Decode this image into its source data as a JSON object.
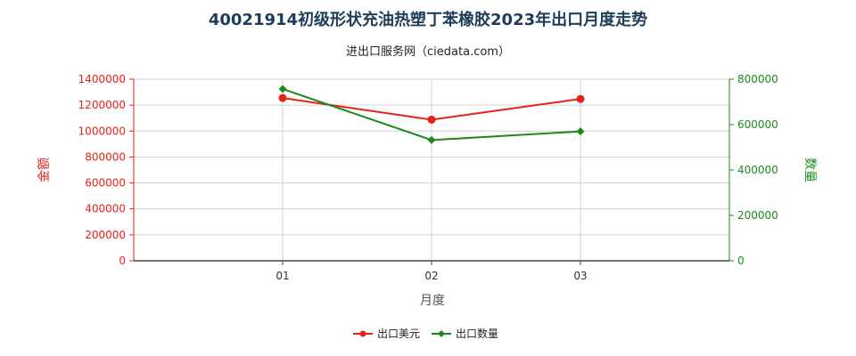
{
  "chart_data": {
    "type": "line",
    "title": "40021914初级形状充油热塑丁苯橡胶2023年出口月度走势",
    "subtitle": "进出口服务网（ciedata.com）",
    "xlabel": "月度",
    "ylabel_left": "金额",
    "ylabel_right": "数量",
    "categories": [
      "01",
      "02",
      "03"
    ],
    "y_left": {
      "min": 0,
      "max": 1400000,
      "ticks": [
        "0",
        "200000",
        "400000",
        "600000",
        "800000",
        "1000000",
        "1200000",
        "1400000"
      ]
    },
    "y_right": {
      "min": 0,
      "max": 800000,
      "ticks": [
        "0",
        "200000",
        "400000",
        "600000",
        "800000"
      ]
    },
    "series": [
      {
        "name": "出口美元",
        "axis": "left",
        "color": "#e8201a",
        "marker": "circle",
        "values": [
          1255000,
          1088000,
          1248000
        ]
      },
      {
        "name": "出口数量",
        "axis": "right",
        "color": "#1a8a1a",
        "marker": "diamond",
        "values": [
          757000,
          532000,
          570000
        ]
      }
    ],
    "grid": true,
    "legend": "bottom",
    "colors": {
      "left_axis": "#e8201a",
      "right_axis": "#1a8a1a",
      "grid": "#d0d0d0",
      "axis": "#444444"
    }
  }
}
